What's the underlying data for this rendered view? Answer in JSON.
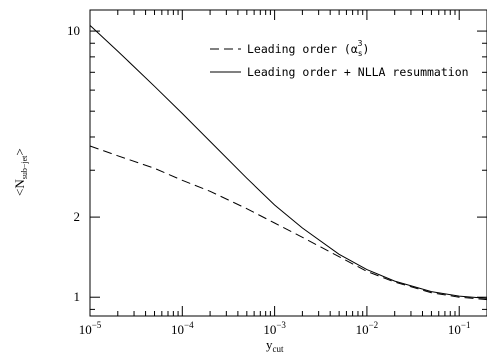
{
  "chart_data": {
    "type": "line",
    "xscale": "log",
    "yscale": "log",
    "xlim": [
      1e-05,
      0.2
    ],
    "ylim": [
      0.85,
      12
    ],
    "xticks": [
      {
        "value": 1e-05,
        "base": "10",
        "exp": "−5"
      },
      {
        "value": 0.0001,
        "base": "10",
        "exp": "−4"
      },
      {
        "value": 0.001,
        "base": "10",
        "exp": "−3"
      },
      {
        "value": 0.01,
        "base": "10",
        "exp": "−2"
      },
      {
        "value": 0.1,
        "base": "10",
        "exp": "−1"
      }
    ],
    "yticks": [
      {
        "value": 1,
        "label": "1"
      },
      {
        "value": 2,
        "label": "2"
      },
      {
        "value": 10,
        "label": "10"
      }
    ],
    "xlabel": {
      "main": "y",
      "sub": "cut"
    },
    "ylabel": {
      "main": "<N",
      "sub": "sub−jet",
      "end": ">"
    },
    "legend": {
      "position": "top-right",
      "entries": [
        {
          "text": "Leading order (α",
          "sub": "s",
          "sup": "3",
          "end": ")",
          "style": "dashed"
        },
        {
          "text": "Leading order + NLLA resummation",
          "style": "solid"
        }
      ]
    },
    "series": [
      {
        "style": "solid",
        "x": [
          1e-05,
          2e-05,
          5e-05,
          0.0001,
          0.0002,
          0.0005,
          0.001,
          0.002,
          0.005,
          0.01,
          0.02,
          0.05,
          0.1,
          0.2
        ],
        "y": [
          10.5,
          8.4,
          6.2,
          4.9,
          3.85,
          2.8,
          2.22,
          1.82,
          1.45,
          1.27,
          1.15,
          1.05,
          1.01,
          0.99
        ]
      },
      {
        "style": "dashed",
        "x": [
          1e-05,
          2e-05,
          5e-05,
          0.0001,
          0.0002,
          0.0005,
          0.001,
          0.002,
          0.005,
          0.01,
          0.02,
          0.05,
          0.1,
          0.2
        ],
        "y": [
          3.7,
          3.4,
          3.05,
          2.75,
          2.5,
          2.15,
          1.9,
          1.68,
          1.42,
          1.25,
          1.14,
          1.04,
          1.0,
          0.98
        ]
      }
    ]
  }
}
